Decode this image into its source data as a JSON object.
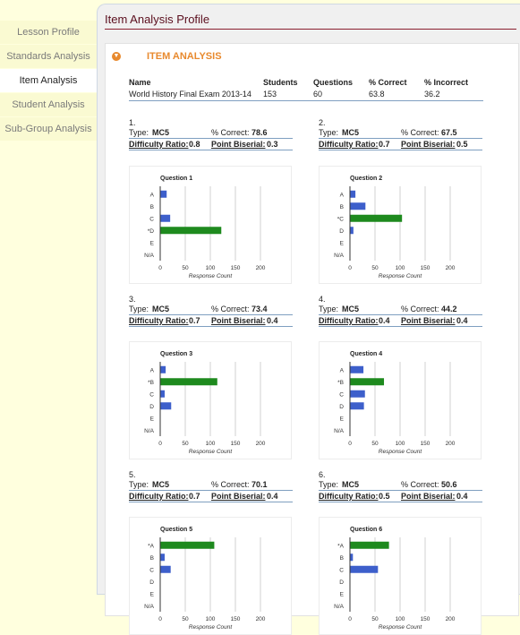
{
  "nav": {
    "items": [
      {
        "label": "Lesson Profile"
      },
      {
        "label": "Standards Analysis"
      },
      {
        "label": "Item Analysis"
      },
      {
        "label": "Student Analysis"
      },
      {
        "label": "Sub-Group Analysis"
      }
    ],
    "active_index": 2
  },
  "page": {
    "title": "Item Analysis Profile"
  },
  "section": {
    "title": "ITEM ANALYSIS"
  },
  "summary": {
    "headers": {
      "name": "Name",
      "students": "Students",
      "questions": "Questions",
      "pct_correct": "% Correct",
      "pct_incorrect": "% Incorrect"
    },
    "row": {
      "name": "World History Final Exam 2013-14",
      "students": "153",
      "questions": "60",
      "pct_correct": "63.8",
      "pct_incorrect": "36.2"
    }
  },
  "labels": {
    "type": "Type:",
    "pct_correct": "% Correct:",
    "difficulty_ratio": "Difficulty Ratio:",
    "point_biserial": "Point Biserial:"
  },
  "questions": [
    {
      "num": "1.",
      "type": "MC5",
      "pct_correct": "78.6",
      "difficulty_ratio": "0.8",
      "point_biserial": "0.3"
    },
    {
      "num": "2.",
      "type": "MC5",
      "pct_correct": "67.5",
      "difficulty_ratio": "0.7",
      "point_biserial": "0.5"
    },
    {
      "num": "3.",
      "type": "MC5",
      "pct_correct": "73.4",
      "difficulty_ratio": "0.7",
      "point_biserial": "0.4"
    },
    {
      "num": "4.",
      "type": "MC5",
      "pct_correct": "44.2",
      "difficulty_ratio": "0.4",
      "point_biserial": "0.4"
    },
    {
      "num": "5.",
      "type": "MC5",
      "pct_correct": "70.1",
      "difficulty_ratio": "0.7",
      "point_biserial": "0.4"
    },
    {
      "num": "6.",
      "type": "MC5",
      "pct_correct": "50.6",
      "difficulty_ratio": "0.5",
      "point_biserial": "0.4"
    }
  ],
  "colors": {
    "correct": "#1e8a1e",
    "incorrect": "#3d5fcb",
    "accent": "#e8892d",
    "title": "#5b0f1e"
  },
  "chart_data": [
    {
      "type": "bar",
      "title": "Question 1",
      "xlabel": "Response Count",
      "categories": [
        "A",
        "B",
        "C",
        "*D",
        "E",
        "N/A"
      ],
      "values": [
        12,
        0,
        19,
        121,
        0,
        0
      ],
      "correct_index": 3,
      "xlim": [
        0,
        200
      ],
      "xticks": [
        "0",
        "50",
        "100",
        "150",
        "200"
      ]
    },
    {
      "type": "bar",
      "title": "Question 2",
      "xlabel": "Response Count",
      "categories": [
        "A",
        "B",
        "*C",
        "D",
        "E",
        "N/A"
      ],
      "values": [
        10,
        30,
        103,
        6,
        0,
        0
      ],
      "correct_index": 2,
      "xlim": [
        0,
        200
      ],
      "xticks": [
        "0",
        "50",
        "100",
        "150",
        "200"
      ]
    },
    {
      "type": "bar",
      "title": "Question 3",
      "xlabel": "Response Count",
      "categories": [
        "A",
        "*B",
        "C",
        "D",
        "E",
        "N/A"
      ],
      "values": [
        10,
        113,
        8,
        21,
        0,
        0
      ],
      "correct_index": 1,
      "xlim": [
        0,
        200
      ],
      "xticks": [
        "0",
        "50",
        "100",
        "150",
        "200"
      ]
    },
    {
      "type": "bar",
      "title": "Question 4",
      "xlabel": "Response Count",
      "categories": [
        "A",
        "*B",
        "C",
        "D",
        "E",
        "N/A"
      ],
      "values": [
        26,
        67,
        29,
        27,
        0,
        0
      ],
      "correct_index": 1,
      "xlim": [
        0,
        200
      ],
      "xticks": [
        "0",
        "50",
        "100",
        "150",
        "200"
      ]
    },
    {
      "type": "bar",
      "title": "Question 5",
      "xlabel": "Response Count",
      "categories": [
        "*A",
        "B",
        "C",
        "D",
        "E",
        "N/A"
      ],
      "values": [
        107,
        8,
        20,
        0,
        0,
        0
      ],
      "correct_index": 0,
      "xlim": [
        0,
        200
      ],
      "xticks": [
        "0",
        "50",
        "100",
        "150",
        "200"
      ]
    },
    {
      "type": "bar",
      "title": "Question 6",
      "xlabel": "Response Count",
      "categories": [
        "*A",
        "B",
        "C",
        "D",
        "E",
        "N/A"
      ],
      "values": [
        77,
        5,
        55,
        0,
        0,
        0
      ],
      "correct_index": 0,
      "xlim": [
        0,
        200
      ],
      "xticks": [
        "0",
        "50",
        "100",
        "150",
        "200"
      ]
    }
  ]
}
